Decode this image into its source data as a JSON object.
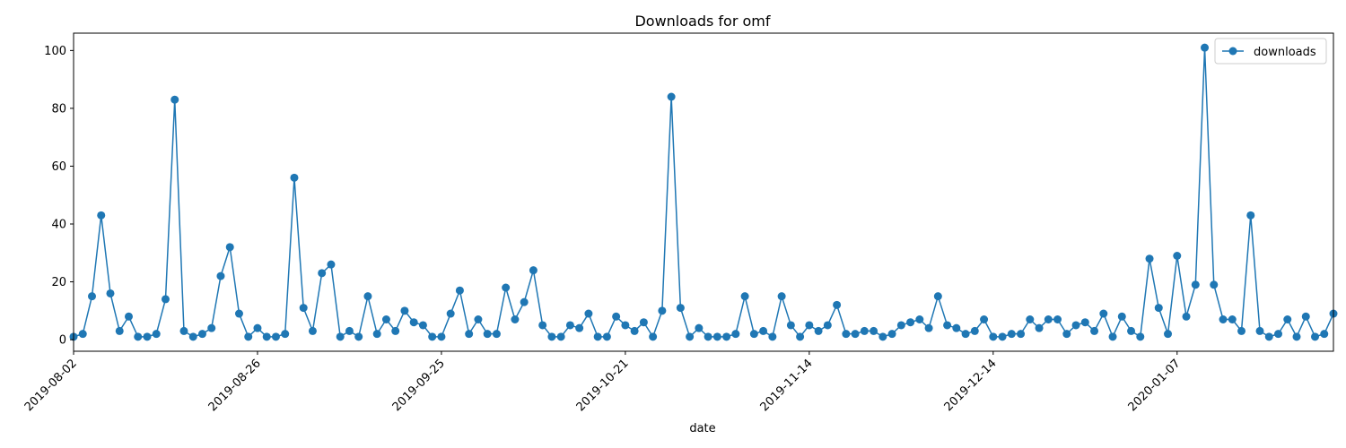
{
  "chart_data": {
    "type": "line",
    "title": "Downloads for omf",
    "xlabel": "date",
    "ylabel": "",
    "ylim": [
      -4,
      106
    ],
    "yticks": [
      0,
      20,
      40,
      60,
      80,
      100
    ],
    "xticks": [
      "2019-08-02",
      "2019-08-26",
      "2019-09-25",
      "2019-10-21",
      "2019-11-14",
      "2019-12-14",
      "2020-01-07"
    ],
    "xtick_indices": [
      0,
      20,
      40,
      60,
      80,
      100,
      120
    ],
    "grid": false,
    "legend_position": "top-right",
    "series": [
      {
        "name": "downloads",
        "color": "#1f77b4",
        "marker": "circle",
        "values": [
          1,
          2,
          15,
          43,
          16,
          3,
          8,
          1,
          1,
          2,
          14,
          83,
          3,
          1,
          2,
          4,
          22,
          32,
          9,
          1,
          4,
          1,
          1,
          2,
          56,
          11,
          3,
          23,
          26,
          1,
          3,
          1,
          15,
          2,
          7,
          3,
          10,
          6,
          5,
          1,
          1,
          9,
          17,
          2,
          7,
          2,
          2,
          18,
          7,
          13,
          24,
          5,
          1,
          1,
          5,
          4,
          9,
          1,
          1,
          8,
          5,
          3,
          6,
          1,
          10,
          84,
          11,
          1,
          4,
          1,
          1,
          1,
          2,
          15,
          2,
          3,
          1,
          15,
          5,
          1,
          5,
          3,
          5,
          12,
          2,
          2,
          3,
          3,
          1,
          2,
          5,
          6,
          7,
          4,
          15,
          5,
          4,
          2,
          3,
          7,
          1,
          1,
          2,
          2,
          7,
          4,
          7,
          7,
          2,
          5,
          6,
          3,
          9,
          1,
          8,
          3,
          1,
          28,
          11,
          2,
          29,
          8,
          19,
          101,
          19,
          7,
          7,
          3,
          43,
          3,
          1,
          2,
          7,
          1,
          8,
          1,
          2,
          9
        ]
      }
    ]
  }
}
